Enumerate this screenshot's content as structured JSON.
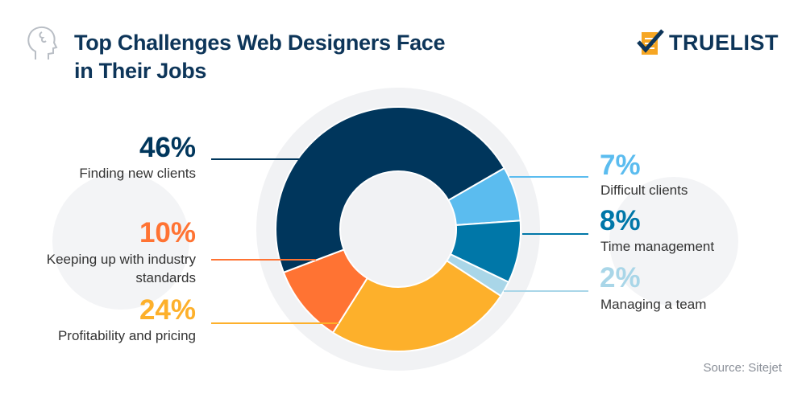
{
  "header": {
    "title_line1": "Top Challenges Web Designers Face",
    "title_line2": "in Their Jobs",
    "logo_text": "TRUELIST",
    "icon": "head-brain-icon"
  },
  "source": "Source: Sitejet",
  "chart_data": {
    "type": "pie",
    "variant": "donut",
    "title": "Top Challenges Web Designers Face in Their Jobs",
    "slices": [
      {
        "label": "Difficult clients",
        "value": 7,
        "display": "7%",
        "color": "#5bbcef"
      },
      {
        "label": "Time management",
        "value": 8,
        "display": "8%",
        "color": "#0077a8"
      },
      {
        "label": "Managing a team",
        "value": 2,
        "display": "2%",
        "color": "#a9d6e8"
      },
      {
        "label": "Profitability and pricing",
        "value": 24,
        "display": "24%",
        "color": "#fdb02b"
      },
      {
        "label": "Keeping up with industry standards",
        "value": 10,
        "display": "10%",
        "color": "#ff7333"
      },
      {
        "label": "Finding new clients",
        "value": 46,
        "display": "46%",
        "color": "#00365c"
      }
    ]
  }
}
